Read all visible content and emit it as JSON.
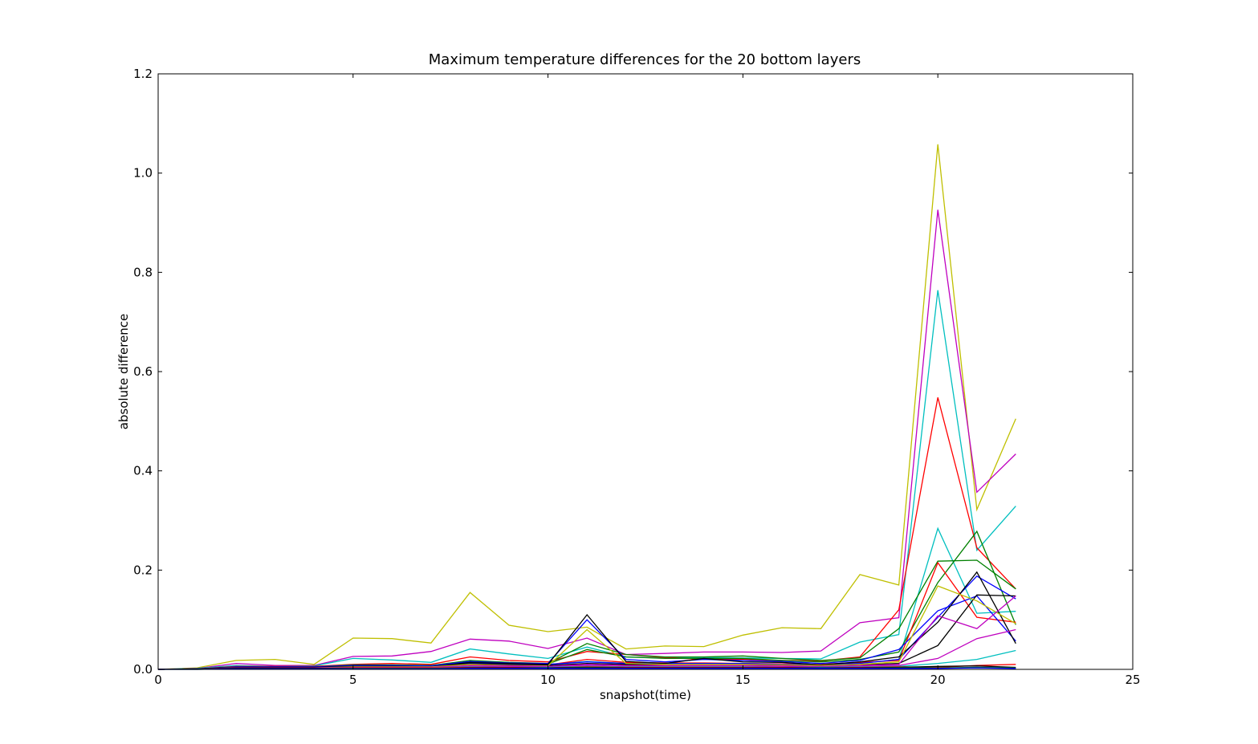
{
  "chart_data": {
    "type": "line",
    "title": "Maximum temperature differences for the 20 bottom layers",
    "xlabel": "snapshot(time)",
    "ylabel": "absolute difference",
    "xlim": [
      0,
      25
    ],
    "ylim": [
      0,
      1.2
    ],
    "xticks": [
      "0",
      "5",
      "10",
      "15",
      "20",
      "25"
    ],
    "yticks": [
      "0.0",
      "0.2",
      "0.4",
      "0.6",
      "0.8",
      "1.0",
      "1.2"
    ],
    "grid": false,
    "legend": "none",
    "x": [
      0,
      1,
      2,
      3,
      4,
      5,
      6,
      7,
      8,
      9,
      10,
      11,
      12,
      13,
      14,
      15,
      16,
      17,
      18,
      19,
      20,
      21,
      22
    ],
    "series": [
      {
        "color": "#bfbf00",
        "values": [
          0,
          0.003,
          0.018,
          0.02,
          0.01,
          0.063,
          0.062,
          0.053,
          0.155,
          0.089,
          0.076,
          0.085,
          0.041,
          0.047,
          0.046,
          0.069,
          0.084,
          0.082,
          0.191,
          0.17,
          1.058,
          0.322,
          0.505
        ]
      },
      {
        "color": "#bf00bf",
        "values": [
          0,
          0.002,
          0.012,
          0.008,
          0.008,
          0.026,
          0.027,
          0.036,
          0.061,
          0.057,
          0.042,
          0.063,
          0.03,
          0.032,
          0.035,
          0.035,
          0.034,
          0.037,
          0.094,
          0.104,
          0.926,
          0.357,
          0.434
        ]
      },
      {
        "color": "#00bfbf",
        "values": [
          0,
          0.002,
          0.008,
          0.006,
          0.007,
          0.022,
          0.019,
          0.014,
          0.041,
          0.031,
          0.022,
          0.045,
          0.025,
          0.023,
          0.024,
          0.023,
          0.022,
          0.021,
          0.055,
          0.07,
          0.764,
          0.24,
          0.329
        ]
      },
      {
        "color": "#ff0000",
        "values": [
          0,
          0.001,
          0.006,
          0.006,
          0.006,
          0.01,
          0.012,
          0.01,
          0.025,
          0.018,
          0.015,
          0.036,
          0.03,
          0.024,
          0.02,
          0.02,
          0.018,
          0.017,
          0.025,
          0.12,
          0.548,
          0.245,
          0.162
        ]
      },
      {
        "color": "#00bfbf",
        "values": [
          0,
          0.001,
          0.004,
          0.004,
          0.004,
          0.008,
          0.008,
          0.006,
          0.015,
          0.012,
          0.01,
          0.016,
          0.012,
          0.012,
          0.01,
          0.01,
          0.009,
          0.009,
          0.012,
          0.02,
          0.284,
          0.113,
          0.117
        ]
      },
      {
        "color": "#008000",
        "values": [
          0,
          0.001,
          0.005,
          0.005,
          0.005,
          0.009,
          0.009,
          0.008,
          0.018,
          0.014,
          0.012,
          0.052,
          0.03,
          0.025,
          0.025,
          0.027,
          0.022,
          0.018,
          0.023,
          0.082,
          0.218,
          0.22,
          0.162
        ]
      },
      {
        "color": "#008000",
        "values": [
          0,
          0.001,
          0.004,
          0.004,
          0.004,
          0.007,
          0.007,
          0.007,
          0.014,
          0.012,
          0.011,
          0.04,
          0.025,
          0.022,
          0.022,
          0.022,
          0.018,
          0.015,
          0.02,
          0.035,
          0.175,
          0.278,
          0.09
        ]
      },
      {
        "color": "#ff0000",
        "values": [
          0,
          0.001,
          0.004,
          0.004,
          0.004,
          0.007,
          0.007,
          0.006,
          0.012,
          0.01,
          0.009,
          0.02,
          0.014,
          0.013,
          0.013,
          0.012,
          0.011,
          0.01,
          0.014,
          0.018,
          0.215,
          0.105,
          0.095
        ]
      },
      {
        "color": "#0000ff",
        "values": [
          0,
          0.001,
          0.005,
          0.005,
          0.005,
          0.008,
          0.008,
          0.007,
          0.016,
          0.013,
          0.012,
          0.1,
          0.02,
          0.015,
          0.02,
          0.018,
          0.016,
          0.012,
          0.018,
          0.04,
          0.118,
          0.148,
          0.057
        ]
      },
      {
        "color": "#0000ff",
        "values": [
          0,
          0.001,
          0.004,
          0.004,
          0.004,
          0.006,
          0.006,
          0.006,
          0.013,
          0.011,
          0.01,
          0.015,
          0.012,
          0.012,
          0.012,
          0.012,
          0.01,
          0.009,
          0.012,
          0.02,
          0.105,
          0.188,
          0.142
        ]
      },
      {
        "color": "#000000",
        "values": [
          0,
          0.001,
          0.004,
          0.004,
          0.004,
          0.006,
          0.006,
          0.005,
          0.014,
          0.012,
          0.01,
          0.11,
          0.016,
          0.012,
          0.022,
          0.015,
          0.014,
          0.009,
          0.015,
          0.025,
          0.095,
          0.196,
          0.052
        ]
      },
      {
        "color": "#000000",
        "values": [
          0,
          0.001,
          0.003,
          0.003,
          0.003,
          0.005,
          0.005,
          0.005,
          0.011,
          0.009,
          0.008,
          0.012,
          0.01,
          0.009,
          0.009,
          0.009,
          0.008,
          0.007,
          0.009,
          0.012,
          0.048,
          0.15,
          0.148
        ]
      },
      {
        "color": "#bfbf00",
        "values": [
          0,
          0.001,
          0.003,
          0.003,
          0.003,
          0.005,
          0.005,
          0.005,
          0.01,
          0.008,
          0.007,
          0.08,
          0.012,
          0.01,
          0.01,
          0.01,
          0.009,
          0.008,
          0.01,
          0.015,
          0.168,
          0.138,
          0.092
        ]
      },
      {
        "color": "#bf00bf",
        "values": [
          0,
          0.001,
          0.003,
          0.003,
          0.003,
          0.004,
          0.004,
          0.004,
          0.008,
          0.007,
          0.006,
          0.01,
          0.008,
          0.008,
          0.008,
          0.008,
          0.007,
          0.006,
          0.008,
          0.01,
          0.108,
          0.082,
          0.148
        ]
      },
      {
        "color": "#bf00bf",
        "values": [
          0,
          0.001,
          0.002,
          0.002,
          0.002,
          0.003,
          0.003,
          0.003,
          0.006,
          0.005,
          0.005,
          0.008,
          0.006,
          0.006,
          0.006,
          0.006,
          0.005,
          0.005,
          0.006,
          0.008,
          0.022,
          0.062,
          0.08
        ]
      },
      {
        "color": "#00bfbf",
        "values": [
          0,
          0.001,
          0.002,
          0.002,
          0.002,
          0.003,
          0.003,
          0.003,
          0.005,
          0.004,
          0.004,
          0.006,
          0.005,
          0.005,
          0.005,
          0.005,
          0.004,
          0.004,
          0.005,
          0.006,
          0.012,
          0.02,
          0.038
        ]
      },
      {
        "color": "#ff0000",
        "values": [
          0,
          0.001,
          0.002,
          0.002,
          0.002,
          0.003,
          0.003,
          0.003,
          0.004,
          0.004,
          0.003,
          0.005,
          0.004,
          0.004,
          0.004,
          0.004,
          0.004,
          0.003,
          0.004,
          0.005,
          0.004,
          0.008,
          0.01
        ]
      },
      {
        "color": "#000000",
        "values": [
          0,
          0.001,
          0.002,
          0.002,
          0.002,
          0.002,
          0.002,
          0.002,
          0.003,
          0.003,
          0.003,
          0.004,
          0.003,
          0.003,
          0.003,
          0.003,
          0.003,
          0.003,
          0.003,
          0.004,
          0.006,
          0.007,
          0.004
        ]
      },
      {
        "color": "#008000",
        "values": [
          0,
          0.0,
          0.001,
          0.001,
          0.001,
          0.002,
          0.002,
          0.002,
          0.002,
          0.002,
          0.002,
          0.003,
          0.002,
          0.002,
          0.002,
          0.002,
          0.002,
          0.002,
          0.002,
          0.003,
          0.003,
          0.004,
          0.003
        ]
      },
      {
        "color": "#0000ff",
        "values": [
          0,
          0.0,
          0.001,
          0.001,
          0.001,
          0.001,
          0.001,
          0.001,
          0.002,
          0.002,
          0.002,
          0.002,
          0.002,
          0.002,
          0.002,
          0.002,
          0.002,
          0.002,
          0.002,
          0.002,
          0.002,
          0.003,
          0.002
        ]
      }
    ]
  }
}
